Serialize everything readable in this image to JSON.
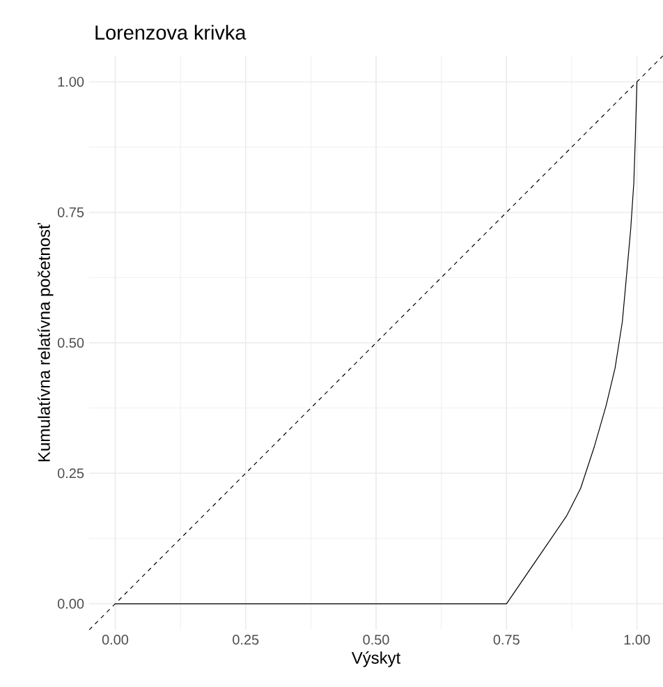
{
  "chart_data": {
    "type": "line",
    "title": "Lorenzova krivka",
    "xlabel": "Výskyt",
    "ylabel": "Kumulatívna relatívna početnosť",
    "xlim": [
      -0.05,
      1.05
    ],
    "ylim": [
      -0.05,
      1.05
    ],
    "xticks": [
      {
        "value": 0,
        "label": "0.00"
      },
      {
        "value": 0.25,
        "label": "0.25"
      },
      {
        "value": 0.5,
        "label": "0.50"
      },
      {
        "value": 0.75,
        "label": "0.75"
      },
      {
        "value": 1,
        "label": "1.00"
      }
    ],
    "yticks": [
      {
        "value": 0,
        "label": "0.00"
      },
      {
        "value": 0.25,
        "label": "0.25"
      },
      {
        "value": 0.5,
        "label": "0.50"
      },
      {
        "value": 0.75,
        "label": "0.75"
      },
      {
        "value": 1,
        "label": "1.00"
      }
    ],
    "grid": true,
    "marker": "none",
    "series": [
      {
        "color": "#000000",
        "line_style": "solid",
        "x": [
          0,
          0.75,
          0.865,
          0.892,
          0.918,
          0.941,
          0.958,
          0.972,
          0.98,
          0.988,
          0.994,
          0.997,
          1
        ],
        "values": [
          0,
          0,
          0.168,
          0.221,
          0.3,
          0.38,
          0.451,
          0.54,
          0.628,
          0.717,
          0.806,
          0.894,
          1
        ]
      },
      {
        "color": "#000000",
        "line_style": "dashed",
        "x": [
          -0.05,
          1.05
        ],
        "values": [
          -0.05,
          1.05
        ]
      }
    ]
  }
}
